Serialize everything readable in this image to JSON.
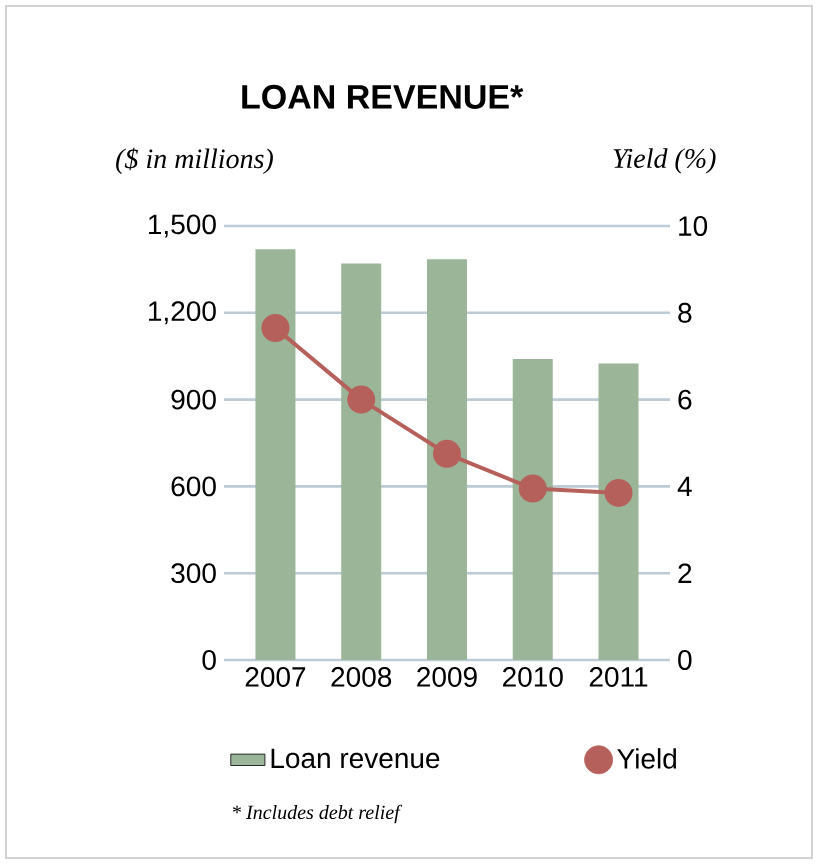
{
  "chart_data": {
    "type": "bar",
    "title": "LOAN REVENUE*",
    "ylabel": "($ in millions)",
    "y2label": "Yield (%)",
    "categories": [
      "2007",
      "2008",
      "2009",
      "2010",
      "2011"
    ],
    "series": [
      {
        "name": "Loan revenue",
        "color": "#9ab598",
        "values": [
          1420,
          1370,
          1385,
          1040,
          1025
        ]
      },
      {
        "name": "Yield",
        "type": "line",
        "axis": "y2",
        "color": "#b5605a",
        "marker": "circle",
        "values": [
          7.65,
          6.0,
          4.75,
          3.95,
          3.85
        ]
      }
    ],
    "ylim": [
      0,
      1500
    ],
    "yticks": [
      0,
      300,
      600,
      900,
      {
        "value": 1200,
        "label": "1,200"
      },
      {
        "value": 1500,
        "label": "1,500"
      }
    ],
    "y2lim": [
      0,
      10
    ],
    "y2ticks": [
      0,
      2,
      4,
      6,
      8,
      10
    ],
    "grid": "y",
    "legend": "bottom",
    "annotations": [
      "* Includes debt relief"
    ]
  }
}
